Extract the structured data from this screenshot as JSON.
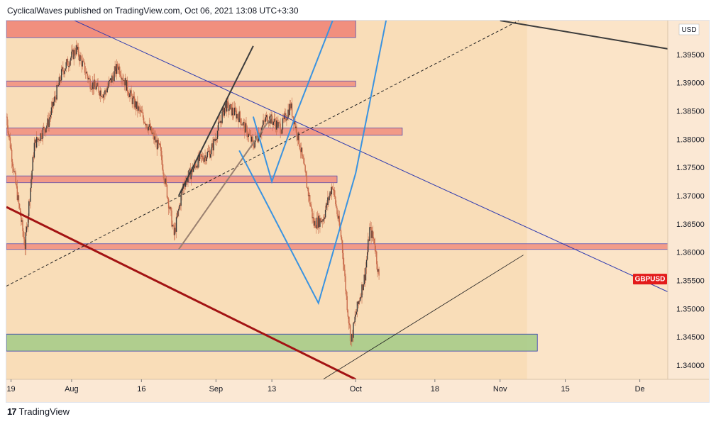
{
  "header": {
    "text": "CyclicalWaves published on TradingView.com, Oct 06, 2021 13:08 UTC+3:30"
  },
  "footer": {
    "brand": "TradingView",
    "logo_glyph": "17"
  },
  "colors": {
    "panel_bg": "#f9ddb8",
    "future_bg": "#fbe4c8",
    "price_axis_bg": "#fbe8d4",
    "candle": "#c96b4b",
    "resistance_zone": "#f08a7a",
    "support_zone": "#a7cc8a",
    "blue_line": "#3a93e0",
    "navy_line": "#2f3bb0",
    "dark_red_line": "#a31313",
    "label_red": "#e31b1b"
  },
  "chart_data": {
    "type": "candlestick",
    "symbol": "GBPUSD",
    "currency_label": "USD",
    "last_price": 1.3553,
    "ylim": [
      1.3375,
      1.401
    ],
    "y_ticks": [
      1.34,
      1.345,
      1.35,
      1.355,
      1.36,
      1.365,
      1.37,
      1.375,
      1.38,
      1.385,
      1.39,
      1.395
    ],
    "y_tick_labels": [
      "1.34000",
      "1.34500",
      "1.35000",
      "1.35500",
      "1.36000",
      "1.36500",
      "1.37000",
      "1.37500",
      "1.38000",
      "1.38500",
      "1.39000",
      "1.39500"
    ],
    "x_range_days": [
      "2021-07-18",
      "2021-12-07"
    ],
    "x_ticks": [
      {
        "date": "2021-07-19",
        "label": "19"
      },
      {
        "date": "2021-08-01",
        "label": "Aug"
      },
      {
        "date": "2021-08-16",
        "label": "16"
      },
      {
        "date": "2021-09-01",
        "label": "Sep"
      },
      {
        "date": "2021-09-13",
        "label": "13"
      },
      {
        "date": "2021-10-01",
        "label": "Oct"
      },
      {
        "date": "2021-10-18",
        "label": "18"
      },
      {
        "date": "2021-11-01",
        "label": "Nov"
      },
      {
        "date": "2021-11-15",
        "label": "15"
      },
      {
        "date": "2021-12-01",
        "label": "De"
      }
    ],
    "price_path": [
      [
        "2021-07-18",
        1.384
      ],
      [
        "2021-07-20",
        1.372
      ],
      [
        "2021-07-22",
        1.361
      ],
      [
        "2021-07-24",
        1.379
      ],
      [
        "2021-07-27",
        1.383
      ],
      [
        "2021-07-30",
        1.392
      ],
      [
        "2021-08-02",
        1.396
      ],
      [
        "2021-08-05",
        1.39
      ],
      [
        "2021-08-08",
        1.388
      ],
      [
        "2021-08-11",
        1.393
      ],
      [
        "2021-08-14",
        1.387
      ],
      [
        "2021-08-17",
        1.383
      ],
      [
        "2021-08-20",
        1.378
      ],
      [
        "2021-08-23",
        1.363
      ],
      [
        "2021-08-25",
        1.372
      ],
      [
        "2021-08-28",
        1.376
      ],
      [
        "2021-08-31",
        1.378
      ],
      [
        "2021-09-03",
        1.386
      ],
      [
        "2021-09-06",
        1.384
      ],
      [
        "2021-09-09",
        1.379
      ],
      [
        "2021-09-12",
        1.384
      ],
      [
        "2021-09-15",
        1.382
      ],
      [
        "2021-09-17",
        1.386
      ],
      [
        "2021-09-19",
        1.379
      ],
      [
        "2021-09-22",
        1.365
      ],
      [
        "2021-09-24",
        1.366
      ],
      [
        "2021-09-26",
        1.372
      ],
      [
        "2021-09-28",
        1.362
      ],
      [
        "2021-09-29",
        1.352
      ],
      [
        "2021-09-30",
        1.344
      ],
      [
        "2021-10-01",
        1.349
      ],
      [
        "2021-10-03",
        1.356
      ],
      [
        "2021-10-04",
        1.364
      ],
      [
        "2021-10-05",
        1.362
      ],
      [
        "2021-10-06",
        1.3553
      ]
    ],
    "zones": [
      {
        "type": "resistance",
        "from": "2021-07-18",
        "to": "2021-10-01",
        "low": 1.398,
        "high": 1.401
      },
      {
        "type": "resistance",
        "from": "2021-07-18",
        "to": "2021-10-01",
        "low": 1.3893,
        "high": 1.3903
      },
      {
        "type": "resistance",
        "from": "2021-07-18",
        "to": "2021-10-11",
        "low": 1.3807,
        "high": 1.382
      },
      {
        "type": "resistance",
        "from": "2021-07-18",
        "to": "2021-09-27",
        "low": 1.3723,
        "high": 1.3735
      },
      {
        "type": "resistance",
        "from": "2021-07-18",
        "to": "2021-12-07",
        "low": 1.3605,
        "high": 1.3615
      },
      {
        "type": "support",
        "from": "2021-07-18",
        "to": "2021-11-09",
        "low": 1.3425,
        "high": 1.3455
      }
    ],
    "trendlines": [
      {
        "style": "navy",
        "points": [
          [
            "2021-07-30",
            1.402
          ],
          [
            "2021-12-07",
            1.353
          ]
        ]
      },
      {
        "style": "dark-red",
        "points": [
          [
            "2021-07-18",
            1.368
          ],
          [
            "2021-10-01",
            1.3375
          ]
        ]
      },
      {
        "style": "black-dashed",
        "points": [
          [
            "2021-07-18",
            1.354
          ],
          [
            "2021-11-05",
            1.401
          ]
        ]
      },
      {
        "style": "black-thin",
        "points": [
          [
            "2021-09-24",
            1.3375
          ],
          [
            "2021-11-06",
            1.3595
          ]
        ]
      },
      {
        "style": "dark-gray",
        "points": [
          [
            "2021-11-01",
            1.401
          ],
          [
            "2021-12-07",
            1.396
          ]
        ]
      },
      {
        "style": "dark-gray",
        "points": [
          [
            "2021-08-24",
            1.37
          ],
          [
            "2021-09-09",
            1.3965
          ]
        ]
      },
      {
        "style": "tan",
        "points": [
          [
            "2021-08-24",
            1.3605
          ],
          [
            "2021-09-13",
            1.384
          ]
        ]
      },
      {
        "style": "blue",
        "points": [
          [
            "2021-09-06",
            1.378
          ],
          [
            "2021-09-23",
            1.351
          ],
          [
            "2021-10-01",
            1.374
          ],
          [
            "2021-10-08",
            1.403
          ]
        ]
      },
      {
        "style": "blue",
        "points": [
          [
            "2021-09-09",
            1.384
          ],
          [
            "2021-09-13",
            1.3725
          ],
          [
            "2021-09-18",
            1.384
          ],
          [
            "2021-09-27",
            1.403
          ]
        ]
      }
    ]
  }
}
